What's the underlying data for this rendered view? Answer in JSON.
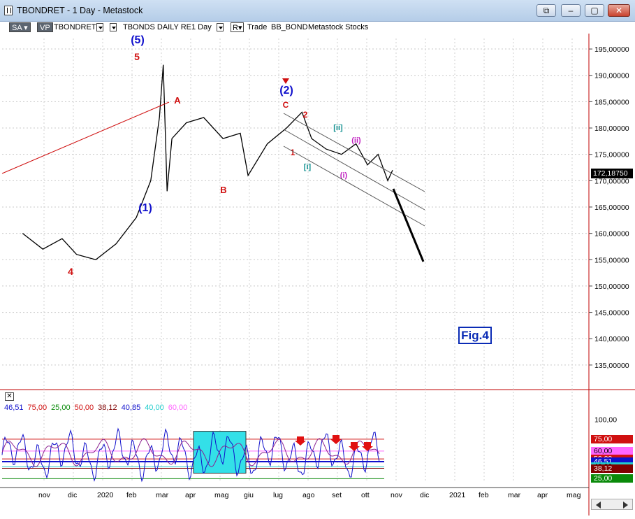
{
  "window": {
    "title": "TBONDRET - 1 Day - Metastock",
    "controls": {
      "restore": "⧉",
      "minimize": "‒",
      "maximize": "▢",
      "close": "✕"
    }
  },
  "toolbar": {
    "sa": "SA",
    "vp": "VP",
    "symbol": "TBONDRET",
    "security_name": "TBONDS DAILY RE",
    "period": "1 Day",
    "r_label": "R",
    "trade": "Trade",
    "template": "BB_BOND",
    "tabs_text": "Metastock  Stocks"
  },
  "chart_data": [
    {
      "type": "line",
      "description_scope": "price panel (daily bars)",
      "y_axis_ticks": [
        "195,00000",
        "190,00000",
        "185,00000",
        "180,00000",
        "175,00000",
        "170,00000",
        "165,00000",
        "160,00000",
        "155,00000",
        "150,00000",
        "145,00000",
        "140,00000",
        "135,00000"
      ],
      "ylim": [
        131,
        197
      ],
      "x_axis_ticks": [
        "nov",
        "dic",
        "2020",
        "feb",
        "mar",
        "apr",
        "mag",
        "giu",
        "lug",
        "ago",
        "set",
        "ott",
        "nov",
        "dic",
        "2021",
        "feb",
        "mar",
        "apr",
        "mag"
      ],
      "last_price": "172,18750",
      "series": [
        {
          "x": [
            "2019-10-15",
            "2019-11-05",
            "2019-11-25",
            "2019-12-10",
            "2019-12-30",
            "2020-01-20",
            "2020-02-10",
            "2020-02-25",
            "2020-03-05",
            "2020-03-09",
            "2020-03-13",
            "2020-03-18",
            "2020-04-02",
            "2020-04-20",
            "2020-05-10",
            "2020-05-28",
            "2020-06-05",
            "2020-06-25",
            "2020-07-15",
            "2020-07-31",
            "2020-08-10",
            "2020-08-25",
            "2020-09-10",
            "2020-09-25",
            "2020-10-07",
            "2020-10-18",
            "2020-10-28",
            "2020-11-02"
          ],
          "values": [
            160,
            157,
            159,
            156,
            155,
            158,
            163,
            170,
            182,
            192,
            168,
            178,
            181,
            182,
            178,
            179,
            171,
            177,
            180,
            183,
            178,
            176,
            175,
            177,
            173,
            175,
            170,
            172
          ]
        }
      ],
      "annotations": [
        {
          "label": "(5)",
          "color": "#1010cc"
        },
        {
          "label": "5",
          "color": "#d01010"
        },
        {
          "label": "4",
          "color": "#d01010"
        },
        {
          "label": "(1)",
          "color": "#1010cc"
        },
        {
          "label": "A",
          "color": "#d01010"
        },
        {
          "label": "B",
          "color": "#d01010"
        },
        {
          "label": "C",
          "color": "#d01010"
        },
        {
          "label": "(2)",
          "color": "#1010cc"
        },
        {
          "label": "1",
          "color": "#d01010"
        },
        {
          "label": "2",
          "color": "#d01010"
        },
        {
          "label": "[i]",
          "color": "#109090"
        },
        {
          "label": "[ii]",
          "color": "#109090"
        },
        {
          "label": "(i)",
          "color": "#c020c0"
        },
        {
          "label": "(ii)",
          "color": "#c020c0"
        }
      ],
      "figure_label": "Fig.4"
    },
    {
      "type": "line",
      "description_scope": "indicator panel",
      "y_axis_ticks": [
        "100,00"
      ],
      "ylim": [
        20,
        105
      ],
      "levels": [
        {
          "label": "75,00",
          "value": 75,
          "color": "#d01010"
        },
        {
          "label": "60,00",
          "value": 60,
          "color": "#ff66ff"
        },
        {
          "label": "50,00",
          "value": 50,
          "color": "#d01010"
        },
        {
          "label": "46,51",
          "value": 46.51,
          "color": "#1010cc"
        },
        {
          "label": "40,00",
          "value": 40,
          "color": "#22cccc"
        },
        {
          "label": "38,12",
          "value": 38.12,
          "color": "#800000"
        },
        {
          "label": "25,00",
          "value": 25,
          "color": "#0a8a0a"
        }
      ],
      "readout": [
        {
          "text": "46,51",
          "color": "#1010cc"
        },
        {
          "text": "75,00",
          "color": "#d01010"
        },
        {
          "text": "25,00",
          "color": "#0a8a0a"
        },
        {
          "text": "50,00",
          "color": "#d01010"
        },
        {
          "text": "38,12",
          "color": "#800000"
        },
        {
          "text": "40,85",
          "color": "#1010cc"
        },
        {
          "text": "40,00",
          "color": "#22cccc"
        },
        {
          "text": "60,00",
          "color": "#ff66ff"
        }
      ]
    }
  ]
}
